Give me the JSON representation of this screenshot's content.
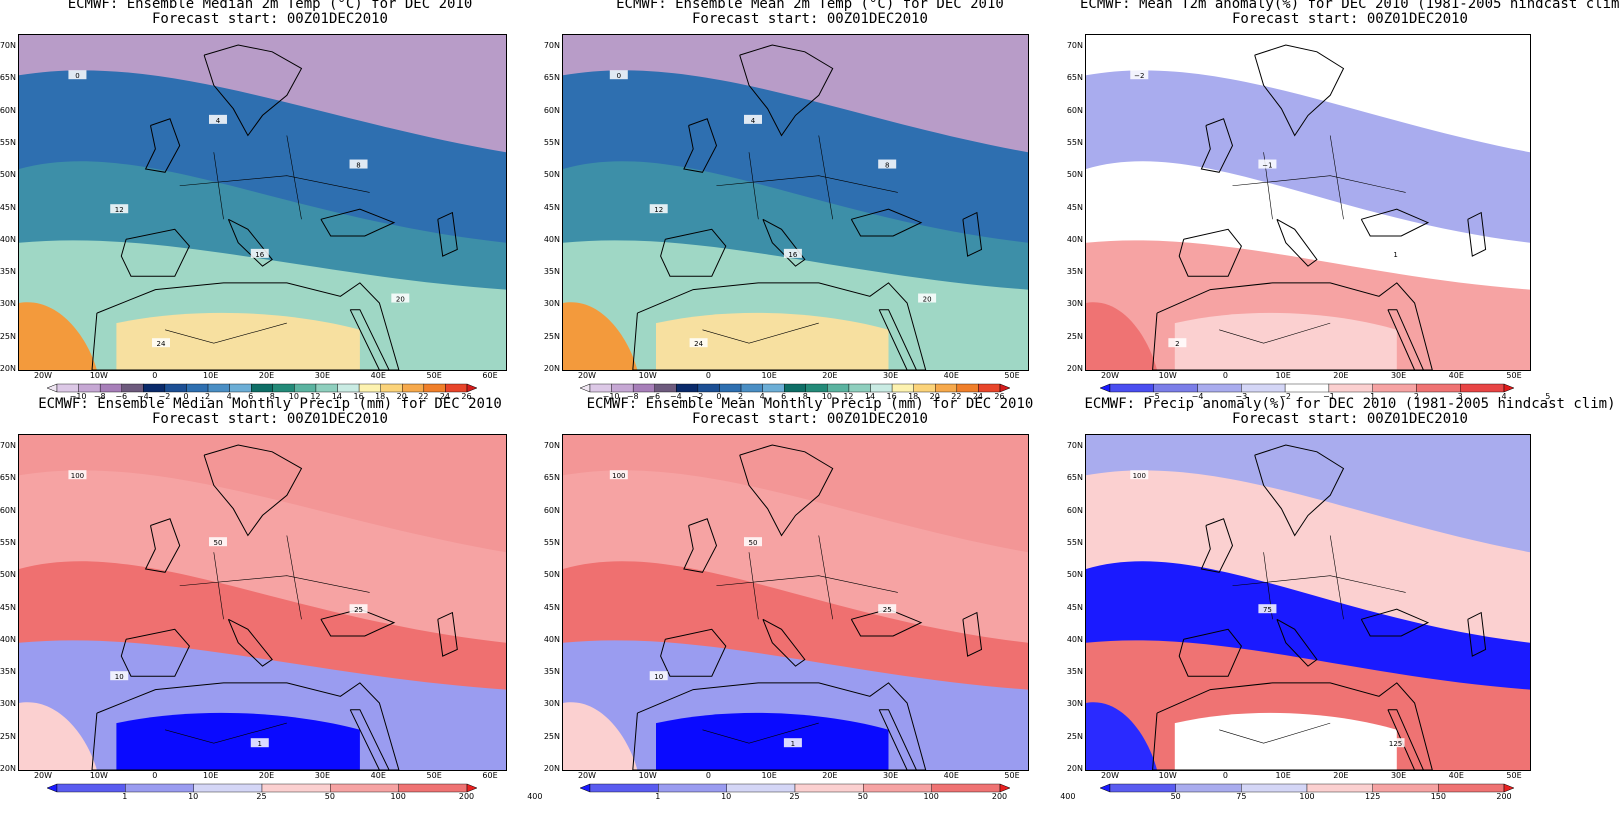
{
  "panels": [
    {
      "id": "temp_median",
      "title1": "ECMWF: Ensemble Median 2m Temp (°C) for DEC 2010",
      "title2": "Forecast start: 00Z01DEC2010",
      "y_ticks": [
        "70N",
        "65N",
        "60N",
        "55N",
        "50N",
        "45N",
        "40N",
        "35N",
        "30N",
        "25N",
        "20N"
      ],
      "x_ticks": [
        "20W",
        "10W",
        "0",
        "10E",
        "20E",
        "30E",
        "40E",
        "50E",
        "60E"
      ],
      "colorbar": {
        "labels": [
          "−10",
          "−8",
          "−6",
          "−4",
          "−2",
          "0",
          "2",
          "4",
          "6",
          "8",
          "10",
          "12",
          "14",
          "16",
          "18",
          "20",
          "22",
          "24",
          "26"
        ],
        "colors": [
          "#efe6f2",
          "#dcc8e6",
          "#c6a8d4",
          "#a77fb9",
          "#6d5a7d",
          "#0a2a6a",
          "#1c4f94",
          "#2e6fb0",
          "#4a8ec4",
          "#6caed6",
          "#0e6e66",
          "#238a78",
          "#5bb3a0",
          "#8fcfbe",
          "#c9ebe3",
          "#fdf2b0",
          "#fbd37a",
          "#f6a94c",
          "#f07f2a",
          "#e8452a",
          "#d31b1b"
        ]
      },
      "map_palette": {
        "north": "#b89cc8",
        "mid": "#2e6fb0",
        "sea": "#3d8fa8",
        "south": "#9fd7c5",
        "desert": "#f7e0a0",
        "warm": "#f39a3c"
      },
      "contour_labels": [
        "0",
        "4",
        "8",
        "12",
        "16",
        "20",
        "24"
      ]
    },
    {
      "id": "temp_mean",
      "title1": "ECMWF: Ensemble Mean 2m Temp (°C) for DEC 2010",
      "title2": "Forecast start: 00Z01DEC2010",
      "y_ticks": [
        "70N",
        "65N",
        "60N",
        "55N",
        "50N",
        "45N",
        "40N",
        "35N",
        "30N",
        "25N",
        "20N"
      ],
      "x_ticks": [
        "20W",
        "10W",
        "0",
        "10E",
        "20E",
        "30E",
        "40E",
        "50E"
      ],
      "colorbar": {
        "labels": [
          "−10",
          "−8",
          "−6",
          "−4",
          "−2",
          "0",
          "2",
          "4",
          "6",
          "8",
          "10",
          "12",
          "14",
          "16",
          "18",
          "20",
          "22",
          "24",
          "26"
        ],
        "colors": [
          "#efe6f2",
          "#dcc8e6",
          "#c6a8d4",
          "#a77fb9",
          "#6d5a7d",
          "#0a2a6a",
          "#1c4f94",
          "#2e6fb0",
          "#4a8ec4",
          "#6caed6",
          "#0e6e66",
          "#238a78",
          "#5bb3a0",
          "#8fcfbe",
          "#c9ebe3",
          "#fdf2b0",
          "#fbd37a",
          "#f6a94c",
          "#f07f2a",
          "#e8452a",
          "#d31b1b"
        ]
      },
      "map_palette": {
        "north": "#b89cc8",
        "mid": "#2e6fb0",
        "sea": "#3d8fa8",
        "south": "#9fd7c5",
        "desert": "#f7e0a0",
        "warm": "#f39a3c"
      },
      "contour_labels": [
        "0",
        "4",
        "8",
        "12",
        "16",
        "20",
        "24"
      ]
    },
    {
      "id": "t2m_anomaly",
      "title1": "ECMWF: Mean T2m anomaly(%) for DEC 2010 (1981-2005 hindcast clim)",
      "title2": "Forecast start: 00Z01DEC2010",
      "y_ticks": [
        "70N",
        "65N",
        "60N",
        "55N",
        "50N",
        "45N",
        "40N",
        "35N",
        "30N",
        "25N",
        "20N"
      ],
      "x_ticks": [
        "20W",
        "10W",
        "0",
        "10E",
        "20E",
        "30E",
        "40E",
        "50E"
      ],
      "colorbar": {
        "labels": [
          "−5",
          "−4",
          "−3",
          "−2",
          "−1",
          "1",
          "2",
          "3",
          "4",
          "5"
        ],
        "colors": [
          "#1a1aff",
          "#4a4ef0",
          "#7b7ee8",
          "#a9acee",
          "#d4d6f6",
          "#ffffff",
          "#fbd0d0",
          "#f6a3a3",
          "#ef7373",
          "#e84545",
          "#e01a1a"
        ]
      },
      "map_palette": {
        "north": "#ffffff",
        "mid": "#a9acee",
        "sea": "#ffffff",
        "south": "#f6a3a3",
        "desert": "#fbd0d0",
        "warm": "#ef7373"
      },
      "contour_labels": [
        "−2",
        "−1",
        "1",
        "2"
      ]
    },
    {
      "id": "precip_median",
      "title1": "ECMWF: Ensemble Median Monthly Precip (mm) for DEC 2010",
      "title2": "Forecast start: 00Z01DEC2010",
      "y_ticks": [
        "70N",
        "65N",
        "60N",
        "55N",
        "50N",
        "45N",
        "40N",
        "35N",
        "30N",
        "25N",
        "20N"
      ],
      "x_ticks": [
        "20W",
        "10W",
        "0",
        "10E",
        "20E",
        "30E",
        "40E",
        "50E",
        "60E"
      ],
      "colorbar": {
        "labels": [
          "1",
          "10",
          "25",
          "50",
          "100",
          "200",
          "400"
        ],
        "colors": [
          "#1a1aff",
          "#5a5cf0",
          "#9a9cf0",
          "#d4d6f6",
          "#fbd0d0",
          "#f6a3a3",
          "#ef7373",
          "#e82020"
        ]
      },
      "map_palette": {
        "north": "#f39696",
        "mid": "#f6a3a3",
        "sea": "#ef7070",
        "south": "#9a9cf0",
        "desert": "#0a0aff",
        "warm": "#fbd0d0"
      },
      "contour_labels": [
        "100",
        "50",
        "25",
        "10",
        "1"
      ]
    },
    {
      "id": "precip_mean",
      "title1": "ECMWF: Ensemble Mean Monthly Precip (mm) for DEC 2010",
      "title2": "Forecast start: 00Z01DEC2010",
      "y_ticks": [
        "70N",
        "65N",
        "60N",
        "55N",
        "50N",
        "45N",
        "40N",
        "35N",
        "30N",
        "25N",
        "20N"
      ],
      "x_ticks": [
        "20W",
        "10W",
        "0",
        "10E",
        "20E",
        "30E",
        "40E",
        "50E"
      ],
      "colorbar": {
        "labels": [
          "1",
          "10",
          "25",
          "50",
          "100",
          "200",
          "400"
        ],
        "colors": [
          "#1a1aff",
          "#5a5cf0",
          "#9a9cf0",
          "#d4d6f6",
          "#fbd0d0",
          "#f6a3a3",
          "#ef7373",
          "#e82020"
        ]
      },
      "map_palette": {
        "north": "#f39696",
        "mid": "#f6a3a3",
        "sea": "#ef7070",
        "south": "#9a9cf0",
        "desert": "#0a0aff",
        "warm": "#fbd0d0"
      },
      "contour_labels": [
        "100",
        "50",
        "25",
        "10",
        "1"
      ]
    },
    {
      "id": "precip_anomaly",
      "title1": "ECMWF: Precip anomaly(%) for DEC 2010 (1981-2005 hindcast clim)",
      "title2": "Forecast start: 00Z01DEC2010",
      "y_ticks": [
        "70N",
        "65N",
        "60N",
        "55N",
        "50N",
        "45N",
        "40N",
        "35N",
        "30N",
        "25N",
        "20N"
      ],
      "x_ticks": [
        "20W",
        "10W",
        "0",
        "10E",
        "20E",
        "30E",
        "40E",
        "50E"
      ],
      "colorbar": {
        "labels": [
          "50",
          "75",
          "100",
          "125",
          "150",
          "200"
        ],
        "colors": [
          "#1a1aff",
          "#5a5cf0",
          "#a9acee",
          "#d4d6f6",
          "#fbd0d0",
          "#f6a3a3",
          "#ef7373",
          "#e82020"
        ]
      },
      "map_palette": {
        "north": "#a9acee",
        "mid": "#fbd0d0",
        "sea": "#1a1aff",
        "south": "#ef7373",
        "desert": "#ffffff",
        "warm": "#2a2aff"
      },
      "contour_labels": [
        "100",
        "75",
        "125"
      ]
    }
  ]
}
